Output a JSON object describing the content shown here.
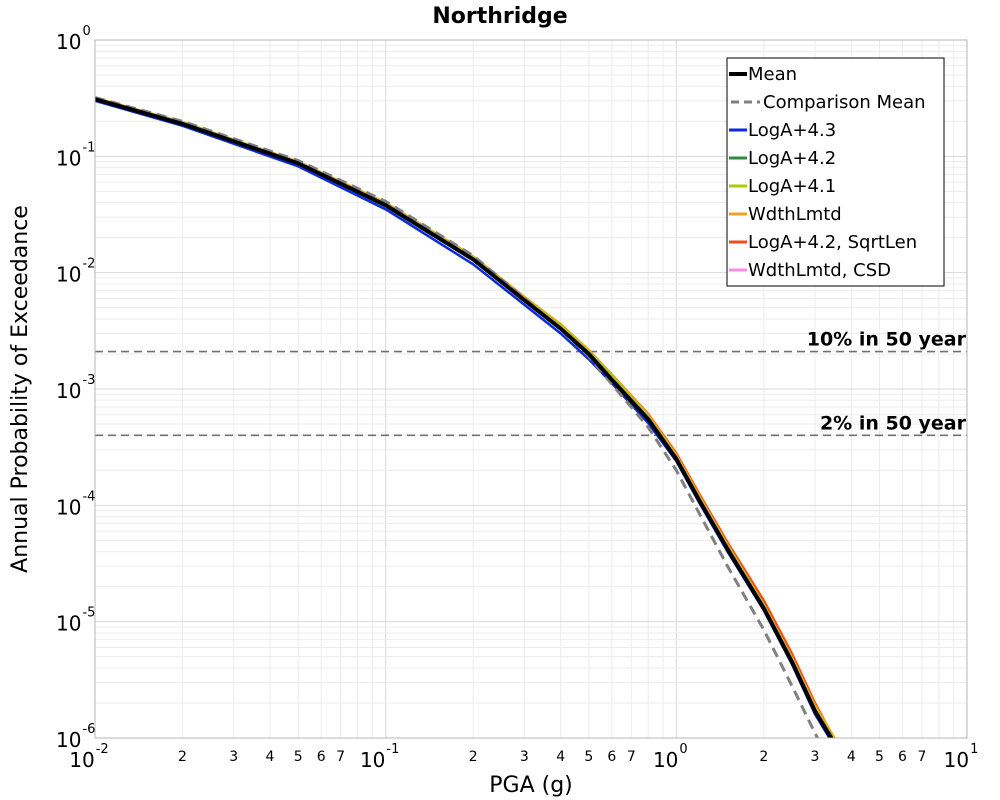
{
  "chart_data": {
    "type": "line",
    "title": "Northridge",
    "xlabel": "PGA (g)",
    "ylabel": "Annual Probability of Exceedance",
    "xscale": "log",
    "yscale": "log",
    "xlim": [
      0.01,
      10
    ],
    "ylim": [
      1e-06,
      1
    ],
    "grid": true,
    "legend_position": "top-right",
    "x_major_ticks": [
      {
        "value": 0.01,
        "base": "10",
        "exp": "-2"
      },
      {
        "value": 0.1,
        "base": "10",
        "exp": "-1"
      },
      {
        "value": 1,
        "base": "10",
        "exp": "0"
      },
      {
        "value": 10,
        "base": "10",
        "exp": "1"
      }
    ],
    "x_minor_tick_labels": [
      "2",
      "3",
      "4",
      "5",
      "6",
      "7"
    ],
    "y_major_ticks": [
      {
        "value": 1,
        "base": "10",
        "exp": "0"
      },
      {
        "value": 0.1,
        "base": "10",
        "exp": "-1"
      },
      {
        "value": 0.01,
        "base": "10",
        "exp": "-2"
      },
      {
        "value": 0.001,
        "base": "10",
        "exp": "-3"
      },
      {
        "value": 0.0001,
        "base": "10",
        "exp": "-4"
      },
      {
        "value": 1e-05,
        "base": "10",
        "exp": "-5"
      },
      {
        "value": 1e-06,
        "base": "10",
        "exp": "-6"
      }
    ],
    "reference_lines": [
      {
        "label": "10% in 50 year",
        "y": 0.0021
      },
      {
        "label": "2% in 50 year",
        "y": 0.0004
      }
    ],
    "series": [
      {
        "name": "Mean",
        "color": "#000000",
        "style": "solid",
        "width": 4,
        "x": [
          0.01,
          0.02,
          0.05,
          0.1,
          0.2,
          0.3,
          0.4,
          0.5,
          0.6,
          0.8,
          1.0,
          1.2,
          1.5,
          2.0,
          2.5,
          3.0,
          3.5
        ],
        "y": [
          0.31,
          0.19,
          0.087,
          0.038,
          0.013,
          0.0058,
          0.0033,
          0.002,
          0.0012,
          0.00055,
          0.00025,
          0.00011,
          4.2e-05,
          1.3e-05,
          4.5e-06,
          1.7e-06,
          9e-07
        ]
      },
      {
        "name": "Comparison Mean",
        "color": "#808080",
        "style": "dashed",
        "width": 3,
        "x": [
          0.01,
          0.02,
          0.05,
          0.1,
          0.2,
          0.3,
          0.4,
          0.5,
          0.6,
          0.8,
          1.0,
          1.2,
          1.5,
          2.0,
          2.5,
          3.0,
          3.3
        ],
        "y": [
          0.32,
          0.2,
          0.092,
          0.041,
          0.014,
          0.006,
          0.0033,
          0.0019,
          0.0011,
          0.00047,
          0.0002,
          8.5e-05,
          3e-05,
          8.5e-06,
          2.8e-06,
          1.1e-06,
          7e-07
        ]
      },
      {
        "name": "LogA+4.3",
        "color": "#0a2be0",
        "style": "solid",
        "width": 2.5,
        "x": [
          0.01,
          0.02,
          0.05,
          0.1,
          0.2,
          0.3,
          0.4,
          0.5,
          0.6,
          0.8,
          1.0,
          1.2,
          1.5,
          2.0,
          2.5,
          3.0,
          3.5
        ],
        "y": [
          0.3,
          0.183,
          0.082,
          0.035,
          0.0118,
          0.0053,
          0.003,
          0.0018,
          0.00112,
          0.00051,
          0.00024,
          0.000105,
          4e-05,
          1.25e-05,
          4.3e-06,
          1.6e-06,
          8.5e-07
        ]
      },
      {
        "name": "LogA+4.2",
        "color": "#2e8b40",
        "style": "solid",
        "width": 2.5,
        "x": [
          0.01,
          0.02,
          0.05,
          0.1,
          0.2,
          0.3,
          0.4,
          0.5,
          0.6,
          0.8,
          1.0,
          1.2,
          1.5,
          2.0,
          2.5,
          3.0,
          3.5
        ],
        "y": [
          0.31,
          0.19,
          0.086,
          0.037,
          0.0128,
          0.0057,
          0.0033,
          0.002,
          0.0012,
          0.00055,
          0.00025,
          0.00011,
          4.2e-05,
          1.3e-05,
          4.5e-06,
          1.7e-06,
          9e-07
        ]
      },
      {
        "name": "LogA+4.1",
        "color": "#a8c81a",
        "style": "solid",
        "width": 2.5,
        "x": [
          0.01,
          0.02,
          0.05,
          0.1,
          0.2,
          0.3,
          0.4,
          0.5,
          0.6,
          0.8,
          1.0,
          1.2,
          1.5,
          2.0,
          2.5,
          3.0,
          3.5
        ],
        "y": [
          0.315,
          0.195,
          0.089,
          0.039,
          0.0135,
          0.006,
          0.0035,
          0.0021,
          0.0013,
          0.00058,
          0.00026,
          0.000115,
          4.4e-05,
          1.36e-05,
          4.7e-06,
          1.8e-06,
          9.5e-07
        ]
      },
      {
        "name": "WdthLmtd",
        "color": "#f2a020",
        "style": "solid",
        "width": 2.5,
        "x": [
          0.01,
          0.02,
          0.05,
          0.1,
          0.2,
          0.3,
          0.4,
          0.5,
          0.6,
          0.8,
          1.0,
          1.2,
          1.5,
          2.0,
          2.5,
          3.0,
          3.5
        ],
        "y": [
          0.318,
          0.197,
          0.09,
          0.04,
          0.0138,
          0.0062,
          0.0036,
          0.00215,
          0.00132,
          0.0006,
          0.00027,
          0.00012,
          4.6e-05,
          1.4e-05,
          4.9e-06,
          1.9e-06,
          1e-06
        ]
      },
      {
        "name": "LogA+4.2, SqrtLen",
        "color": "#e8501c",
        "style": "solid",
        "width": 2.5,
        "x": [
          0.01,
          0.02,
          0.05,
          0.1,
          0.2,
          0.3,
          0.4,
          0.5,
          0.6,
          0.8,
          1.0,
          1.2,
          1.5,
          2.0,
          2.5,
          3.0,
          3.6
        ],
        "y": [
          0.312,
          0.192,
          0.088,
          0.039,
          0.0135,
          0.0061,
          0.0036,
          0.00215,
          0.00133,
          0.00061,
          0.00028,
          0.000125,
          4.8e-05,
          1.52e-05,
          5.3e-06,
          2e-06,
          8.5e-07
        ]
      },
      {
        "name": "WdthLmtd, CSD",
        "color": "#ff8ce0",
        "style": "solid",
        "width": 2.5,
        "x": [
          0.01,
          0.02,
          0.05,
          0.1,
          0.2,
          0.3,
          0.4,
          0.5,
          0.6,
          0.8,
          1.0,
          1.2,
          1.5,
          2.0,
          2.5,
          3.0,
          3.5
        ],
        "y": [
          0.31,
          0.19,
          0.087,
          0.038,
          0.013,
          0.0058,
          0.0033,
          0.002,
          0.0012,
          0.00055,
          0.00025,
          0.00011,
          4.2e-05,
          1.3e-05,
          4.5e-06,
          1.7e-06,
          9e-07
        ]
      }
    ]
  }
}
